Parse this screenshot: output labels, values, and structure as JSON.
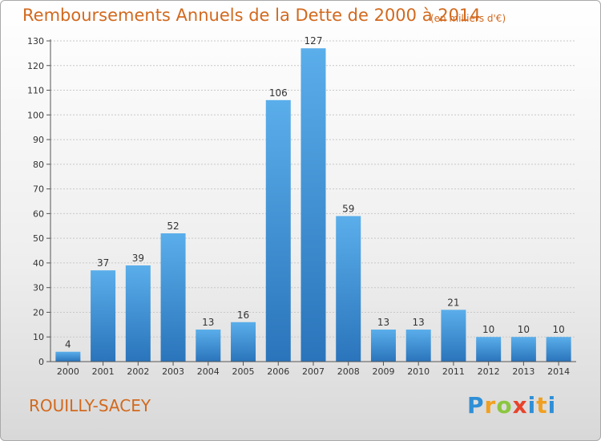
{
  "title": "Remboursements Annuels de la Dette de 2000 à 2014",
  "unit_note": "(en milliers d'€)",
  "place": "ROUILLY-SACEY",
  "logo": "Proxiti",
  "colors": {
    "bar": "#3a8fd8",
    "bar_dark": "#2a74bb",
    "title": "#d2691e"
  },
  "chart_data": {
    "type": "bar",
    "categories": [
      "2000",
      "2001",
      "2002",
      "2003",
      "2004",
      "2005",
      "2006",
      "2007",
      "2008",
      "2009",
      "2010",
      "2011",
      "2012",
      "2013",
      "2014"
    ],
    "values": [
      4,
      37,
      39,
      52,
      13,
      16,
      106,
      127,
      59,
      13,
      13,
      21,
      10,
      10,
      10
    ],
    "title": "Remboursements Annuels de la Dette de 2000 à 2014",
    "xlabel": "",
    "ylabel": "",
    "ylim": [
      0,
      130
    ],
    "yticks": [
      0,
      10,
      20,
      30,
      40,
      50,
      60,
      70,
      80,
      90,
      100,
      110,
      120,
      130
    ],
    "grid": true,
    "data_labels": true
  }
}
